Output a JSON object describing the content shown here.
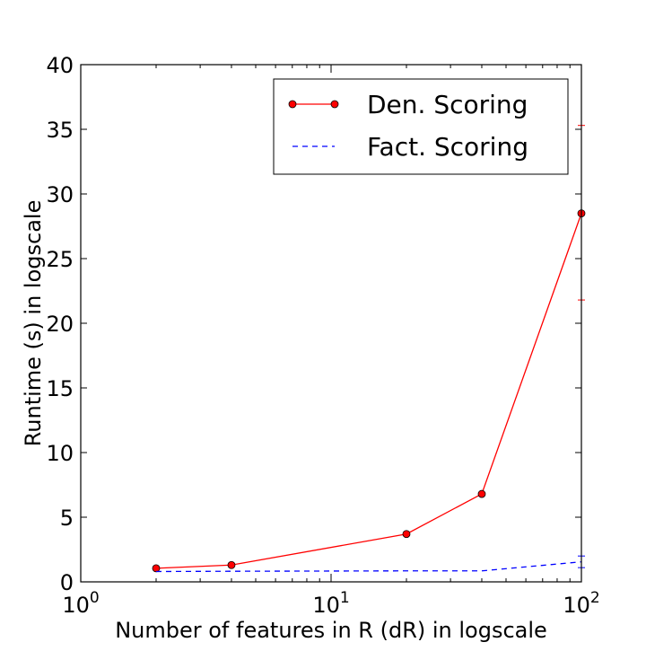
{
  "chart_data": {
    "type": "line",
    "title": "",
    "xlabel": "Number of features in R (dR) in logscale",
    "ylabel": "Runtime (s) in logscale",
    "xscale": "log",
    "xlim": [
      1,
      100
    ],
    "ylim": [
      0,
      40
    ],
    "grid": false,
    "legend_position": "top-right",
    "x_ticks": [
      {
        "value": 1,
        "base": "10",
        "exp": "0"
      },
      {
        "value": 10,
        "base": "10",
        "exp": "1"
      },
      {
        "value": 100,
        "base": "10",
        "exp": "2"
      }
    ],
    "y_ticks": [
      {
        "value": 0,
        "label": "0"
      },
      {
        "value": 5,
        "label": "5"
      },
      {
        "value": 10,
        "label": "10"
      },
      {
        "value": 15,
        "label": "15"
      },
      {
        "value": 20,
        "label": "20"
      },
      {
        "value": 25,
        "label": "25"
      },
      {
        "value": 30,
        "label": "30"
      },
      {
        "value": 35,
        "label": "35"
      },
      {
        "value": 40,
        "label": "40"
      }
    ],
    "series": [
      {
        "name": "Den. Scoring",
        "color": "#ff0000",
        "line_style": "solid",
        "marker": "circle",
        "x": [
          2,
          4,
          20,
          40,
          100
        ],
        "y": [
          1.05,
          1.3,
          3.7,
          6.8,
          28.5
        ],
        "error": [
          null,
          null,
          null,
          null,
          [
            21.8,
            35.3
          ]
        ]
      },
      {
        "name": "Fact. Scoring",
        "color": "#0000ff",
        "line_style": "dashed",
        "marker": "none",
        "x": [
          2,
          4,
          20,
          40,
          100
        ],
        "y": [
          0.8,
          0.82,
          0.85,
          0.85,
          1.55
        ],
        "error": [
          null,
          null,
          null,
          null,
          [
            1.1,
            2.0
          ]
        ]
      }
    ]
  }
}
